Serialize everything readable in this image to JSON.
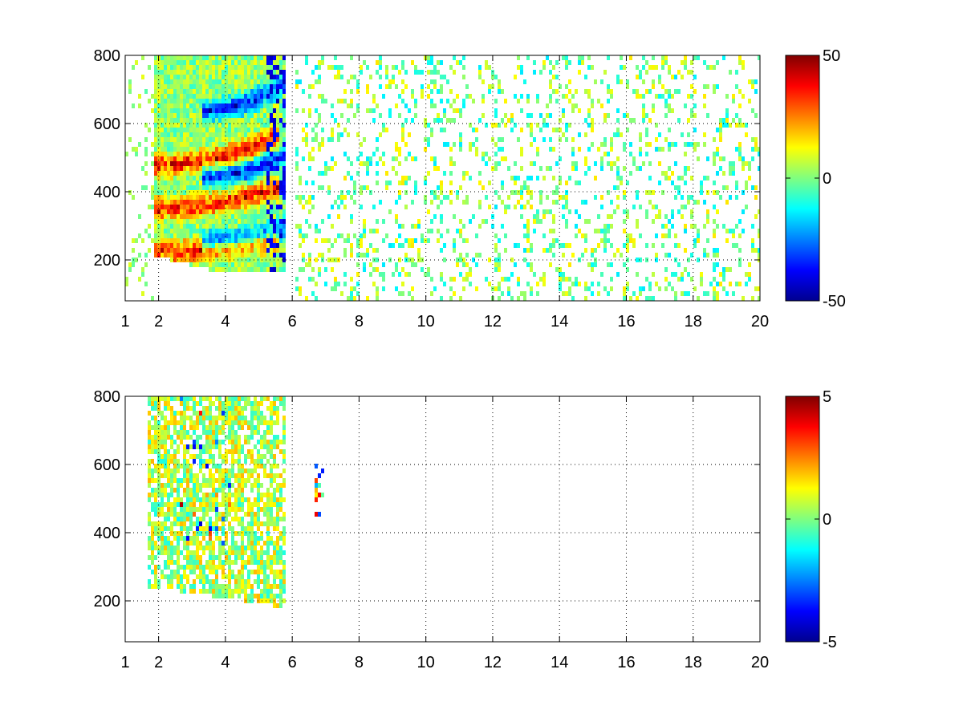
{
  "figure": {
    "background": "#ffffff"
  },
  "chart_data": [
    {
      "type": "heatmap",
      "title": "",
      "xlabel": "",
      "ylabel": "",
      "xlim": [
        1,
        20
      ],
      "ylim": [
        80,
        800
      ],
      "xticks": [
        1,
        2,
        4,
        6,
        8,
        10,
        12,
        14,
        16,
        18,
        20
      ],
      "xtick_labels": [
        "1",
        "2",
        "4",
        "6",
        "8",
        "10",
        "12",
        "14",
        "16",
        "18",
        "20"
      ],
      "yticks": [
        200,
        400,
        600,
        800
      ],
      "ytick_labels": [
        "200",
        "400",
        "600",
        "800"
      ],
      "grid": true,
      "colormap": "jet",
      "colorbar": {
        "clim": [
          -50,
          50
        ],
        "ticks": [
          50,
          0,
          -50
        ],
        "tick_labels": [
          "50",
          "0",
          "-50"
        ]
      },
      "features": [
        {
          "kind": "positive_band",
          "x": [
            1.8,
            5.6
          ],
          "y": [
            230,
            560
          ],
          "value": 45
        },
        {
          "kind": "negative_band",
          "x": [
            3.3,
            5.8
          ],
          "y": [
            260,
            760
          ],
          "value": -45
        },
        {
          "kind": "scattered_noise",
          "x": [
            6.0,
            20.0
          ],
          "y": [
            80,
            800
          ],
          "value_range": [
            -15,
            15
          ]
        }
      ]
    },
    {
      "type": "heatmap",
      "title": "",
      "xlabel": "",
      "ylabel": "",
      "xlim": [
        1,
        20
      ],
      "ylim": [
        80,
        800
      ],
      "xticks": [
        1,
        2,
        4,
        6,
        8,
        10,
        12,
        14,
        16,
        18,
        20
      ],
      "xtick_labels": [
        "1",
        "2",
        "4",
        "6",
        "8",
        "10",
        "12",
        "14",
        "16",
        "18",
        "20"
      ],
      "yticks": [
        200,
        400,
        600,
        800
      ],
      "ytick_labels": [
        "200",
        "400",
        "600",
        "800"
      ],
      "grid": true,
      "colormap": "jet",
      "colorbar": {
        "clim": [
          -5,
          5
        ],
        "ticks": [
          5,
          0,
          -5
        ],
        "tick_labels": [
          "5",
          "0",
          "-5"
        ]
      },
      "features": [
        {
          "kind": "data_region",
          "x": [
            1.6,
            5.8
          ],
          "y": [
            170,
            800
          ],
          "value_range": [
            -1,
            2
          ]
        },
        {
          "kind": "outliers",
          "x": [
            2.5,
            4.2
          ],
          "y": [
            350,
            800
          ],
          "value_range": [
            -5,
            5
          ]
        },
        {
          "kind": "isolated",
          "x": [
            6.6,
            6.9
          ],
          "y": [
            440,
            620
          ],
          "value_range": [
            -4,
            4
          ]
        }
      ]
    }
  ]
}
